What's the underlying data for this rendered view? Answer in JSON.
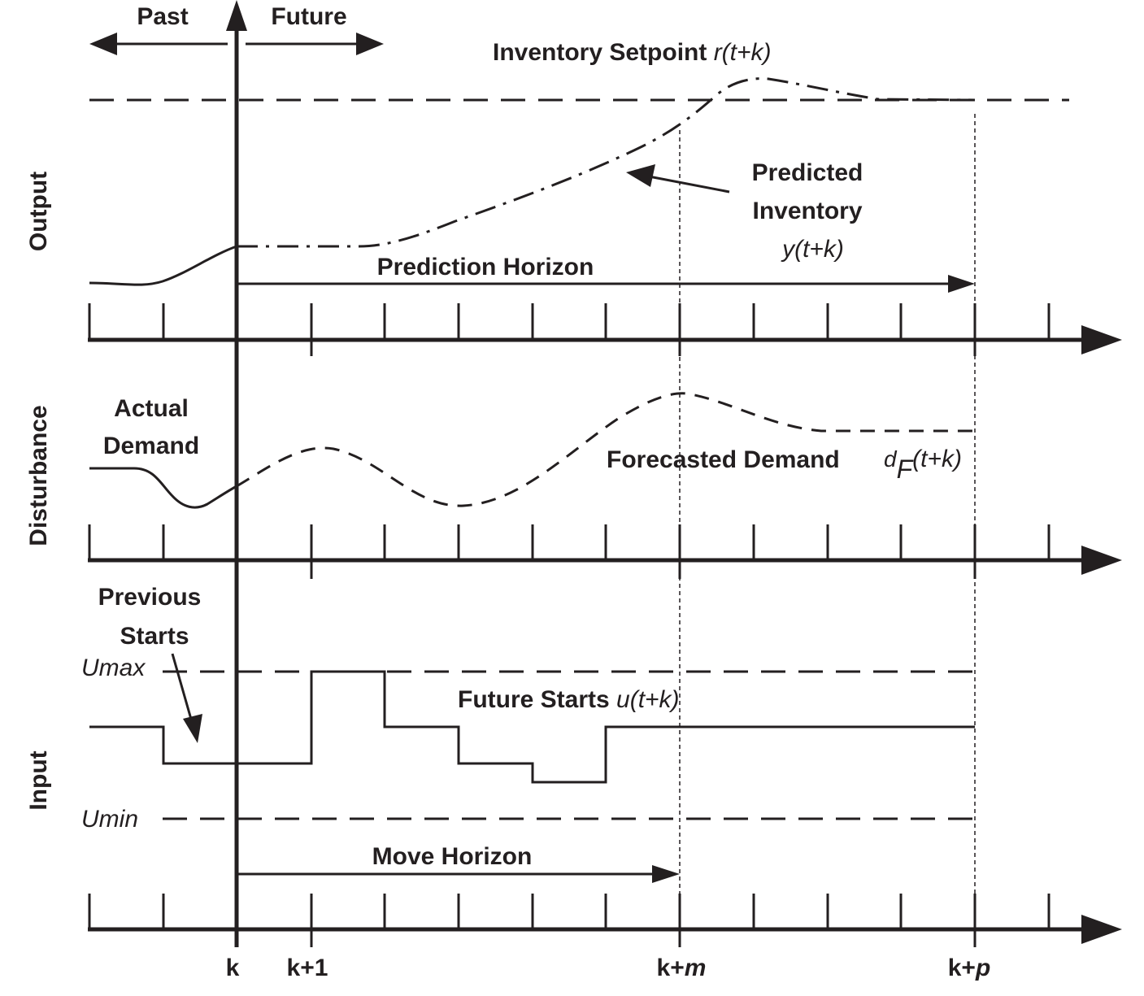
{
  "time_labels": {
    "past": "Past",
    "future": "Future"
  },
  "axis_labels": {
    "output": "Output",
    "disturbance": "Disturbance",
    "input": "Input"
  },
  "ticks": {
    "k": "k",
    "k1": "k+1",
    "km_prefix": "k+",
    "km_var": "m",
    "kp_prefix": "k+",
    "kp_var": "p"
  },
  "output_panel": {
    "setpoint_label": "Inventory Setpoint ",
    "setpoint_math": "r(t+k)",
    "predicted_line1": "Predicted",
    "predicted_line2": "Inventory",
    "predicted_math": "y(t+k)",
    "prediction_horizon": "Prediction Horizon"
  },
  "disturbance_panel": {
    "actual_line1": "Actual",
    "actual_line2": "Demand",
    "forecast_label": "Forecasted Demand",
    "forecast_d": "d",
    "forecast_sub": "F",
    "forecast_args": "(t+k)"
  },
  "input_panel": {
    "previous_line1": "Previous",
    "previous_line2": "Starts",
    "umax": "Umax",
    "umin": "Umin",
    "future_starts": "Future Starts ",
    "future_math": "u(t+k)",
    "move_horizon": "Move Horizon"
  },
  "colors": {
    "ink": "#231f20",
    "background": "#ffffff"
  }
}
